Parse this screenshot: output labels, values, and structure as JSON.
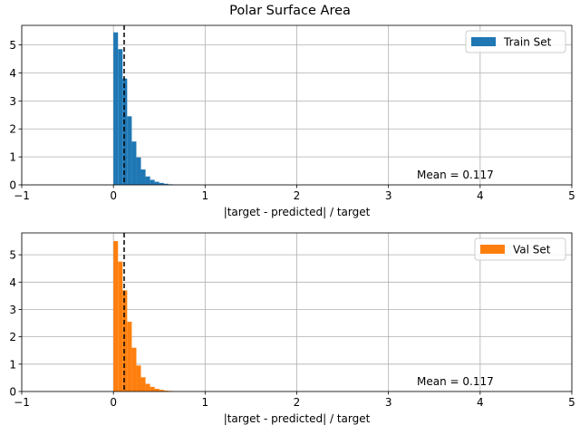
{
  "figure_title": "Polar Surface Area",
  "chart_data": [
    {
      "type": "bar",
      "subtype": "histogram",
      "series": [
        {
          "name": "Train Set",
          "color": "#1f77b4",
          "bin_width": 0.05,
          "bins": [
            [
              0.0,
              5.45
            ],
            [
              0.05,
              4.85
            ],
            [
              0.1,
              3.8
            ],
            [
              0.15,
              2.45
            ],
            [
              0.2,
              1.55
            ],
            [
              0.25,
              0.98
            ],
            [
              0.3,
              0.55
            ],
            [
              0.35,
              0.3
            ],
            [
              0.4,
              0.18
            ],
            [
              0.45,
              0.11
            ],
            [
              0.5,
              0.07
            ],
            [
              0.55,
              0.04
            ],
            [
              0.6,
              0.02
            ],
            [
              0.65,
              0.01
            ]
          ]
        }
      ],
      "mean": 0.117,
      "annotation": "Mean = 0.117",
      "xlabel": "|target - predicted| / target",
      "xlim": [
        -1,
        5
      ],
      "ylim": [
        0,
        5.7
      ],
      "xticks": [
        -1,
        0,
        1,
        2,
        3,
        4,
        5
      ],
      "yticks": [
        0,
        1,
        2,
        3,
        4,
        5
      ],
      "grid": true,
      "legend": "top-right"
    },
    {
      "type": "bar",
      "subtype": "histogram",
      "series": [
        {
          "name": "Val Set",
          "color": "#ff7f0e",
          "bin_width": 0.05,
          "bins": [
            [
              0.0,
              5.5
            ],
            [
              0.05,
              4.75
            ],
            [
              0.1,
              3.7
            ],
            [
              0.15,
              2.55
            ],
            [
              0.2,
              1.6
            ],
            [
              0.25,
              0.95
            ],
            [
              0.3,
              0.52
            ],
            [
              0.35,
              0.28
            ],
            [
              0.4,
              0.17
            ],
            [
              0.45,
              0.1
            ],
            [
              0.5,
              0.06
            ],
            [
              0.55,
              0.03
            ],
            [
              0.6,
              0.02
            ]
          ]
        }
      ],
      "mean": 0.117,
      "annotation": "Mean = 0.117",
      "xlabel": "|target - predicted| / target",
      "xlim": [
        -1,
        5
      ],
      "ylim": [
        0,
        5.8
      ],
      "xticks": [
        -1,
        0,
        1,
        2,
        3,
        4,
        5
      ],
      "yticks": [
        0,
        1,
        2,
        3,
        4,
        5
      ],
      "grid": true,
      "legend": "top-right"
    }
  ]
}
